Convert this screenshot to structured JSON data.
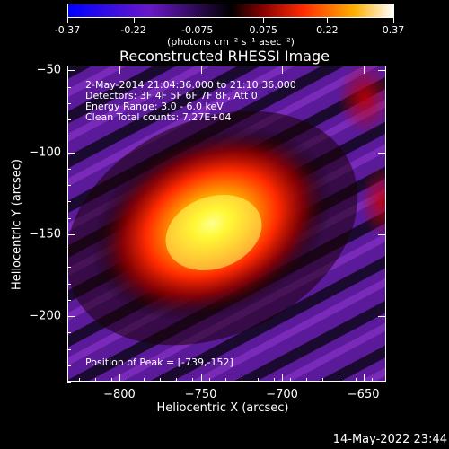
{
  "colorbar": {
    "tick_labels": [
      "-0.37",
      "-0.22",
      "-0.075",
      "0.075",
      "0.22",
      "0.37"
    ],
    "unit_label": "(photons cm⁻² s⁻¹ asec⁻²)"
  },
  "plot": {
    "title": "Reconstructed RHESSI Image",
    "info_lines": [
      "2-May-2014 21:04:36.000 to 21:10:36.000",
      "Detectors: 3F 4F 5F 6F 7F 8F, Att 0",
      "Energy Range: 3.0 - 6.0 keV",
      "Clean     Total counts: 7.27E+04"
    ],
    "peak_text": "Position of Peak = [-739,-152]",
    "timestamp": "14-May-2022 23:44"
  },
  "chart_data": {
    "type": "heatmap",
    "title": "Reconstructed RHESSI Image",
    "xlabel": "Heliocentric X (arcsec)",
    "ylabel": "Heliocentric Y (arcsec)",
    "xlim": [
      -832,
      -636
    ],
    "ylim": [
      -240,
      -47
    ],
    "x_ticks": [
      -800,
      -750,
      -700,
      -650
    ],
    "y_ticks": [
      -50,
      -100,
      -150,
      -200
    ],
    "x_tick_labels": [
      "-800",
      "-750",
      "-700",
      "-650"
    ],
    "y_tick_labels": [
      "-50",
      "-100",
      "-150",
      "-200"
    ],
    "colorbar": {
      "min": -0.37,
      "max": 0.37,
      "ticks": [
        -0.37,
        -0.22,
        -0.075,
        0.075,
        0.22,
        0.37
      ]
    },
    "peak": {
      "x": -739,
      "y": -152,
      "value": 0.37
    },
    "colors": [
      "#0000ff",
      "#7a1fb0",
      "#000000",
      "#ff2a00",
      "#ffff00",
      "#ffffff"
    ]
  }
}
